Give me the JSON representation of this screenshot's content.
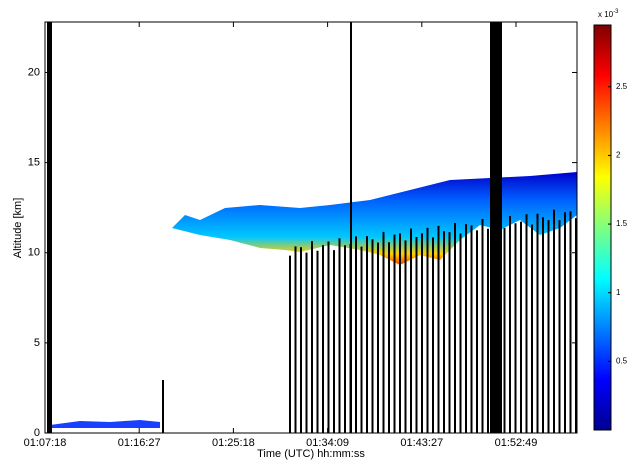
{
  "chart_data": {
    "type": "heatmap",
    "x_label": "Time (UTC) hh:mm:ss",
    "y_label": "Altitude [km]",
    "x_tick_labels": [
      "01:07:18",
      "01:16:27",
      "01:25:18",
      "01:34:09",
      "01:43:27",
      "01:52:49"
    ],
    "ylim": [
      0,
      22.8
    ],
    "yticks": [
      0,
      5,
      10,
      15,
      20
    ],
    "clim": [
      0,
      2.95
    ],
    "cticks": [
      0.5,
      1,
      1.5,
      2,
      2.5
    ],
    "colorbar_scale": {
      "base": "x 10",
      "exponent": "-3"
    }
  }
}
